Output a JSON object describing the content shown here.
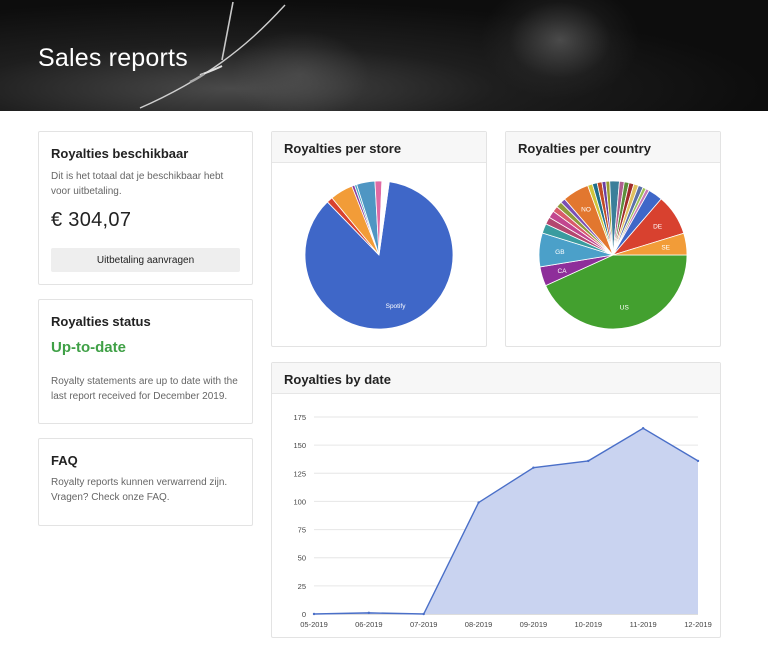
{
  "header": {
    "title": "Sales reports"
  },
  "available": {
    "title": "Royalties beschikbaar",
    "description": "Dit is het totaal dat je beschikbaar hebt voor uitbetaling.",
    "amount": "€ 304,07",
    "button_label": "Uitbetaling aanvragen"
  },
  "status": {
    "title": "Royalties status",
    "state": "Up-to-date",
    "description": "Royalty statements are up to date with the last report received for December 2019.",
    "state_color": "#3fa046"
  },
  "faq": {
    "title": "FAQ",
    "description": "Royalty reports kunnen verwarrend zijn. Vragen? Check onze FAQ."
  },
  "store_card": {
    "title": "Royalties per store"
  },
  "country_card": {
    "title": "Royalties per country"
  },
  "date_card": {
    "title": "Royalties by date"
  },
  "chart_data": [
    {
      "type": "pie",
      "title": "Royalties per store",
      "slices": [
        {
          "label": "Spotify",
          "value": 85.5,
          "color": "#3f67c8"
        },
        {
          "label": "",
          "value": 1.3,
          "color": "#d8412f"
        },
        {
          "label": "",
          "value": 5.0,
          "color": "#f29c38"
        },
        {
          "label": "",
          "value": 0.6,
          "color": "#8a3f9e"
        },
        {
          "label": "",
          "value": 0.5,
          "color": "#47a4c7"
        },
        {
          "label": "",
          "value": 4.0,
          "color": "#4f96c3"
        },
        {
          "label": "",
          "value": 1.5,
          "color": "#e06aa4"
        },
        {
          "label": "",
          "value": 1.6,
          "color": "#ffffff"
        }
      ]
    },
    {
      "type": "pie",
      "title": "Royalties per country",
      "slices": [
        {
          "label": "US",
          "value": 41,
          "color": "#43a02f"
        },
        {
          "label": "CA",
          "value": 4,
          "color": "#8e2e9a"
        },
        {
          "label": "GB",
          "value": 7,
          "color": "#4ba0c9"
        },
        {
          "label": "",
          "value": 2,
          "color": "#3a9c9f"
        },
        {
          "label": "",
          "value": 1.5,
          "color": "#b3476f"
        },
        {
          "label": "",
          "value": 1.5,
          "color": "#c2468f"
        },
        {
          "label": "",
          "value": 1.2,
          "color": "#d85b6a"
        },
        {
          "label": "",
          "value": 1.2,
          "color": "#8e9c3c"
        },
        {
          "label": "",
          "value": 1.0,
          "color": "#7a4fb5"
        },
        {
          "label": "NO",
          "value": 5.5,
          "color": "#e2772f"
        },
        {
          "label": "",
          "value": 1.0,
          "color": "#d0c53a"
        },
        {
          "label": "",
          "value": 1.0,
          "color": "#1f6f8a"
        },
        {
          "label": "",
          "value": 1.0,
          "color": "#c24b24"
        },
        {
          "label": "",
          "value": 0.8,
          "color": "#6b3fa0"
        },
        {
          "label": "",
          "value": 0.8,
          "color": "#9b9b2f"
        },
        {
          "label": "",
          "value": 2.0,
          "color": "#3b7f9a"
        },
        {
          "label": "",
          "value": 1.0,
          "color": "#b05f8f"
        },
        {
          "label": "",
          "value": 1.0,
          "color": "#5c8f3a"
        },
        {
          "label": "",
          "value": 1.0,
          "color": "#a02b2b"
        },
        {
          "label": "",
          "value": 1.0,
          "color": "#e0c060"
        },
        {
          "label": "",
          "value": 1.0,
          "color": "#5b6fa8"
        },
        {
          "label": "",
          "value": 0.7,
          "color": "#9fc05a"
        },
        {
          "label": "",
          "value": 0.7,
          "color": "#c77ab7"
        },
        {
          "label": "",
          "value": 3.0,
          "color": "#3f67c8"
        },
        {
          "label": "DE",
          "value": 8.5,
          "color": "#d8412f"
        },
        {
          "label": "SE",
          "value": 4.5,
          "color": "#f29c38"
        }
      ]
    },
    {
      "type": "area",
      "title": "Royalties by date",
      "x": [
        "05-2019",
        "06-2019",
        "07-2019",
        "08-2019",
        "09-2019",
        "10-2019",
        "11-2019",
        "12-2019"
      ],
      "y": [
        0,
        1,
        0,
        99,
        130,
        136,
        165,
        136
      ],
      "ylim": [
        0,
        175
      ],
      "yticks": [
        "0",
        "25",
        "50",
        "75",
        "100",
        "125",
        "150",
        "175"
      ],
      "grid": true,
      "line_color": "#4a6fc8",
      "fill_color": "#c9d3f0"
    }
  ]
}
